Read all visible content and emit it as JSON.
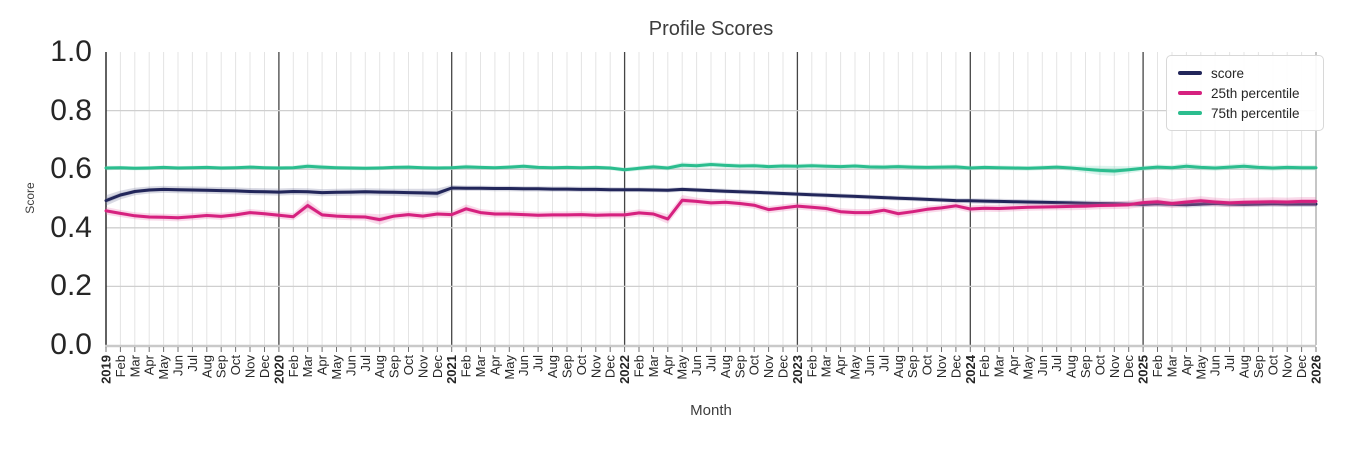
{
  "chart_data": {
    "type": "line",
    "title": "Profile Scores",
    "xlabel": "Month",
    "ylabel": "Score",
    "ylim": [
      0.0,
      1.0
    ],
    "yticks": [
      0.0,
      0.2,
      0.4,
      0.6,
      0.8,
      1.0
    ],
    "ytick_labels": [
      "0.0",
      "0.2",
      "0.4",
      "0.6",
      "0.8",
      "1.0"
    ],
    "grid": true,
    "legend_position": "upper right",
    "x_labels": [
      "2019",
      "Feb",
      "Mar",
      "Apr",
      "May",
      "Jun",
      "Jul",
      "Aug",
      "Sep",
      "Oct",
      "Nov",
      "Dec",
      "2020",
      "Feb",
      "Mar",
      "Apr",
      "May",
      "Jun",
      "Jul",
      "Aug",
      "Sep",
      "Oct",
      "Nov",
      "Dec",
      "2021",
      "Feb",
      "Mar",
      "Apr",
      "May",
      "Jun",
      "Jul",
      "Aug",
      "Sep",
      "Oct",
      "Nov",
      "Dec",
      "2022",
      "Feb",
      "Mar",
      "Apr",
      "May",
      "Jun",
      "Jul",
      "Aug",
      "Sep",
      "Oct",
      "Nov",
      "Dec",
      "2023",
      "Feb",
      "Mar",
      "Apr",
      "May",
      "Jun",
      "Jul",
      "Aug",
      "Sep",
      "Oct",
      "Nov",
      "Dec",
      "2024",
      "Feb",
      "Mar",
      "Apr",
      "May",
      "Jun",
      "Jul",
      "Aug",
      "Sep",
      "Oct",
      "Nov",
      "Dec",
      "2025",
      "Feb",
      "Mar",
      "Apr",
      "May",
      "Jun",
      "Jul",
      "Aug",
      "Sep",
      "Oct",
      "Nov",
      "Dec",
      "2026"
    ],
    "year_tick_indices": [
      0,
      12,
      24,
      36,
      48,
      60,
      72,
      84
    ],
    "series": [
      {
        "name": "score",
        "color": "#22265a",
        "band_color": "#767b9e",
        "values": [
          0.493,
          0.512,
          0.524,
          0.529,
          0.531,
          0.53,
          0.529,
          0.528,
          0.527,
          0.526,
          0.524,
          0.523,
          0.522,
          0.524,
          0.523,
          0.52,
          0.521,
          0.522,
          0.523,
          0.522,
          0.521,
          0.52,
          0.519,
          0.518,
          0.536,
          0.535,
          0.535,
          0.534,
          0.534,
          0.533,
          0.533,
          0.532,
          0.532,
          0.531,
          0.531,
          0.53,
          0.53,
          0.53,
          0.529,
          0.528,
          0.531,
          0.529,
          0.527,
          0.525,
          0.523,
          0.521,
          0.519,
          0.517,
          0.515,
          0.513,
          0.511,
          0.509,
          0.507,
          0.505,
          0.503,
          0.501,
          0.499,
          0.497,
          0.495,
          0.493,
          0.492,
          0.491,
          0.49,
          0.489,
          0.488,
          0.487,
          0.486,
          0.485,
          0.484,
          0.483,
          0.482,
          0.481,
          0.48,
          0.482,
          0.48,
          0.479,
          0.481,
          0.483,
          0.481,
          0.48,
          0.481,
          0.482,
          0.481,
          0.481,
          0.481
        ],
        "band": [
          0.018,
          0.015,
          0.013,
          0.012,
          0.012,
          0.012,
          0.012,
          0.012,
          0.012,
          0.012,
          0.012,
          0.012,
          0.012,
          0.012,
          0.012,
          0.012,
          0.012,
          0.012,
          0.012,
          0.012,
          0.012,
          0.013,
          0.014,
          0.016,
          0.01,
          0.009,
          0.009,
          0.009,
          0.009,
          0.009,
          0.009,
          0.009,
          0.009,
          0.009,
          0.009,
          0.009,
          0.008,
          0.008,
          0.008,
          0.008,
          0.008,
          0.008,
          0.008,
          0.008,
          0.008,
          0.008,
          0.008,
          0.008,
          0.008,
          0.008,
          0.008,
          0.008,
          0.008,
          0.008,
          0.008,
          0.008,
          0.008,
          0.008,
          0.008,
          0.008,
          0.009,
          0.009,
          0.009,
          0.009,
          0.009,
          0.009,
          0.009,
          0.009,
          0.009,
          0.009,
          0.009,
          0.009,
          0.01,
          0.01,
          0.01,
          0.01,
          0.01,
          0.01,
          0.01,
          0.01,
          0.01,
          0.01,
          0.01,
          0.01,
          0.01
        ]
      },
      {
        "name": "25th percentile",
        "color": "#d6217f",
        "band_color": "#e97ab4",
        "values": [
          0.458,
          0.449,
          0.441,
          0.437,
          0.436,
          0.434,
          0.438,
          0.442,
          0.439,
          0.444,
          0.452,
          0.448,
          0.443,
          0.438,
          0.476,
          0.444,
          0.44,
          0.438,
          0.437,
          0.428,
          0.44,
          0.445,
          0.44,
          0.447,
          0.445,
          0.465,
          0.452,
          0.447,
          0.447,
          0.445,
          0.443,
          0.444,
          0.444,
          0.445,
          0.443,
          0.444,
          0.444,
          0.451,
          0.447,
          0.43,
          0.494,
          0.49,
          0.485,
          0.487,
          0.483,
          0.477,
          0.462,
          0.468,
          0.474,
          0.47,
          0.466,
          0.455,
          0.452,
          0.452,
          0.46,
          0.448,
          0.455,
          0.463,
          0.468,
          0.475,
          0.464,
          0.467,
          0.466,
          0.468,
          0.47,
          0.471,
          0.472,
          0.473,
          0.474,
          0.476,
          0.477,
          0.479,
          0.486,
          0.489,
          0.483,
          0.488,
          0.492,
          0.488,
          0.485,
          0.487,
          0.488,
          0.489,
          0.488,
          0.49,
          0.49
        ],
        "band": [
          0.013,
          0.012,
          0.012,
          0.012,
          0.012,
          0.012,
          0.012,
          0.012,
          0.012,
          0.012,
          0.012,
          0.012,
          0.012,
          0.012,
          0.02,
          0.013,
          0.012,
          0.012,
          0.012,
          0.018,
          0.012,
          0.012,
          0.012,
          0.012,
          0.012,
          0.015,
          0.012,
          0.012,
          0.012,
          0.012,
          0.012,
          0.012,
          0.012,
          0.012,
          0.012,
          0.012,
          0.012,
          0.012,
          0.012,
          0.016,
          0.018,
          0.013,
          0.012,
          0.012,
          0.012,
          0.012,
          0.012,
          0.012,
          0.012,
          0.012,
          0.012,
          0.012,
          0.012,
          0.012,
          0.012,
          0.014,
          0.012,
          0.012,
          0.012,
          0.012,
          0.012,
          0.012,
          0.012,
          0.012,
          0.012,
          0.012,
          0.012,
          0.013,
          0.013,
          0.013,
          0.013,
          0.014,
          0.015,
          0.016,
          0.015,
          0.015,
          0.016,
          0.015,
          0.015,
          0.015,
          0.015,
          0.015,
          0.015,
          0.015,
          0.015
        ]
      },
      {
        "name": "75th percentile",
        "color": "#2bbd8e",
        "band_color": "#7ed9bd",
        "values": [
          0.604,
          0.605,
          0.603,
          0.604,
          0.606,
          0.604,
          0.605,
          0.606,
          0.604,
          0.605,
          0.607,
          0.605,
          0.604,
          0.605,
          0.61,
          0.607,
          0.605,
          0.604,
          0.603,
          0.604,
          0.606,
          0.607,
          0.605,
          0.604,
          0.605,
          0.608,
          0.606,
          0.605,
          0.607,
          0.61,
          0.606,
          0.605,
          0.606,
          0.605,
          0.606,
          0.604,
          0.598,
          0.603,
          0.608,
          0.604,
          0.614,
          0.612,
          0.616,
          0.613,
          0.611,
          0.612,
          0.609,
          0.611,
          0.61,
          0.612,
          0.61,
          0.609,
          0.611,
          0.608,
          0.607,
          0.609,
          0.607,
          0.606,
          0.607,
          0.608,
          0.604,
          0.606,
          0.605,
          0.604,
          0.603,
          0.605,
          0.607,
          0.604,
          0.6,
          0.596,
          0.594,
          0.598,
          0.603,
          0.607,
          0.605,
          0.61,
          0.606,
          0.604,
          0.607,
          0.61,
          0.606,
          0.604,
          0.606,
          0.605,
          0.605
        ],
        "band": [
          0.008,
          0.007,
          0.007,
          0.007,
          0.007,
          0.007,
          0.007,
          0.007,
          0.007,
          0.007,
          0.007,
          0.007,
          0.007,
          0.007,
          0.009,
          0.008,
          0.007,
          0.007,
          0.007,
          0.007,
          0.007,
          0.007,
          0.007,
          0.007,
          0.007,
          0.008,
          0.007,
          0.007,
          0.007,
          0.008,
          0.007,
          0.007,
          0.007,
          0.007,
          0.007,
          0.007,
          0.008,
          0.008,
          0.008,
          0.008,
          0.01,
          0.009,
          0.009,
          0.009,
          0.008,
          0.008,
          0.008,
          0.008,
          0.008,
          0.008,
          0.008,
          0.008,
          0.008,
          0.008,
          0.008,
          0.008,
          0.008,
          0.008,
          0.008,
          0.008,
          0.008,
          0.008,
          0.008,
          0.008,
          0.008,
          0.008,
          0.008,
          0.009,
          0.012,
          0.016,
          0.017,
          0.012,
          0.009,
          0.009,
          0.009,
          0.01,
          0.009,
          0.009,
          0.009,
          0.01,
          0.009,
          0.009,
          0.009,
          0.009,
          0.009
        ]
      }
    ],
    "colors": {
      "grid_minor": "#e4e4e4",
      "grid_major": "#cfcfcf",
      "year_line": "#454545",
      "left_spine": "#2e2e2e",
      "bottom_spine": "#c9c9c9",
      "right_spine": "#b3b3b3",
      "tick_mark": "#707070",
      "text": "#262626"
    }
  }
}
